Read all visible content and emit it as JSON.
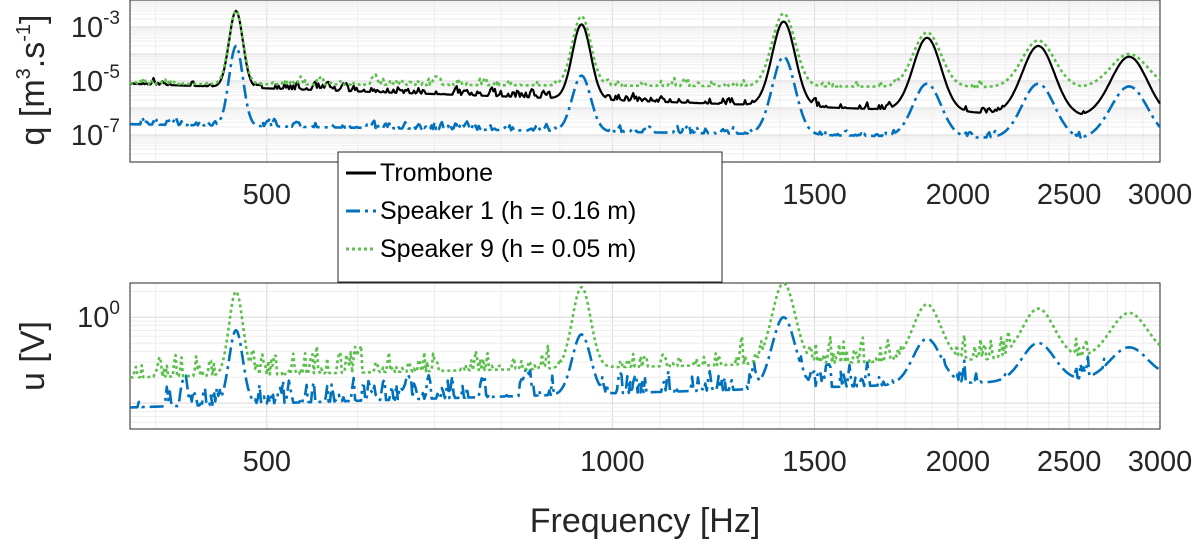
{
  "chart_data": [
    {
      "type": "line",
      "ylabel": "q [m3.s-1]",
      "ylabel_parts": {
        "main": "q [m",
        "sup1": "3",
        "mid": ".s",
        "sup2": "-1",
        "end": "]"
      },
      "x_scale": "log",
      "y_scale": "log",
      "xlim": [
        380,
        3000
      ],
      "ylim": [
        1e-08,
        0.01
      ],
      "grid": true,
      "legend_position": "center-left",
      "xticks": [
        {
          "value": 500,
          "label": "500"
        },
        {
          "value": 1000,
          "label": "1000"
        },
        {
          "value": 1500,
          "label": "1500"
        },
        {
          "value": 2000,
          "label": "2000"
        },
        {
          "value": 2500,
          "label": "2500"
        },
        {
          "value": 3000,
          "label": "3000"
        }
      ],
      "yticks": [
        {
          "value": 0.001,
          "base": "10",
          "exp": "-3"
        },
        {
          "value": 1e-05,
          "base": "10",
          "exp": "-5"
        },
        {
          "value": 1e-07,
          "base": "10",
          "exp": "-7"
        }
      ],
      "peaks_hz": [
        470,
        940,
        1410,
        1880,
        2350,
        2820
      ],
      "series": [
        {
          "name": "Trombone",
          "color": "#000000",
          "style": "solid",
          "floor_log10": -5.1,
          "floor_trend": -1.3,
          "peaks_log10": [
            -2.4,
            -2.9,
            -2.8,
            -3.4,
            -3.7,
            -4.1
          ]
        },
        {
          "name": "Speaker 1 (h = 0.16 m)",
          "color": "#0072BD",
          "style": "dashdot",
          "floor_log10": -6.6,
          "floor_trend": -0.6,
          "peaks_log10": [
            -3.7,
            -4.8,
            -4.1,
            -5.1,
            -5.1,
            -5.2
          ]
        },
        {
          "name": "Speaker 9 (h = 0.05 m)",
          "color": "#5CBF4C",
          "style": "dotted",
          "floor_log10": -5.1,
          "floor_trend": -0.15,
          "peaks_log10": [
            -2.4,
            -2.6,
            -2.5,
            -3.2,
            -3.5,
            -4.0
          ]
        }
      ]
    },
    {
      "type": "line",
      "ylabel": "u [V]",
      "xlabel": "Frequency [Hz]",
      "x_scale": "log",
      "y_scale": "log",
      "xlim": [
        380,
        3000
      ],
      "ylim": [
        0.05,
        2.5
      ],
      "grid": true,
      "xticks": [
        {
          "value": 500,
          "label": "500"
        },
        {
          "value": 1000,
          "label": "1000"
        },
        {
          "value": 1500,
          "label": "1500"
        },
        {
          "value": 2000,
          "label": "2000"
        },
        {
          "value": 2500,
          "label": "2500"
        },
        {
          "value": 3000,
          "label": "3000"
        }
      ],
      "yticks": [
        {
          "value": 1,
          "base": "10",
          "exp": "0"
        }
      ],
      "peaks_hz": [
        470,
        940,
        1410,
        1880,
        2350,
        2820
      ],
      "series": [
        {
          "name": "Speaker 1 (h = 0.16 m)",
          "color": "#0072BD",
          "style": "dashdot",
          "floor_log10": -1.05,
          "floor_trend": 0.35,
          "peaks_log10": [
            -0.15,
            -0.2,
            0.0,
            -0.25,
            -0.3,
            -0.35
          ]
        },
        {
          "name": "Speaker 9 (h = 0.05 m)",
          "color": "#5CBF4C",
          "style": "dotted",
          "floor_log10": -0.7,
          "floor_trend": 0.25,
          "peaks_log10": [
            0.3,
            0.35,
            0.4,
            0.15,
            0.1,
            0.05
          ]
        }
      ]
    }
  ]
}
